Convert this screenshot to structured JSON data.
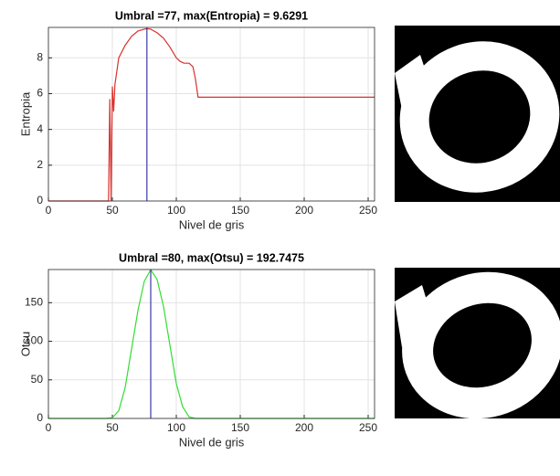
{
  "chart_data": [
    {
      "type": "line",
      "title": "Umbral =77, max(Entropia) = 9.6291",
      "x_label": "Nivel de gris",
      "y_label": "Entropia",
      "x": [
        0,
        10,
        20,
        30,
        40,
        47,
        48,
        49,
        50,
        51,
        52,
        55,
        60,
        65,
        70,
        75,
        77,
        80,
        85,
        90,
        95,
        100,
        103,
        106,
        110,
        113,
        115,
        117,
        120,
        150,
        200,
        255
      ],
      "values": [
        0,
        0,
        0,
        0,
        0,
        0,
        5.7,
        0,
        6.4,
        5.0,
        6.5,
        8.0,
        8.7,
        9.2,
        9.5,
        9.6,
        9.63,
        9.6,
        9.4,
        9.1,
        8.6,
        8.0,
        7.8,
        7.7,
        7.7,
        7.5,
        6.8,
        5.8,
        5.8,
        5.8,
        5.8,
        5.8
      ],
      "color": "#d9302c",
      "vline": 77,
      "vline_color": "#3a3aa8",
      "xlim": [
        0,
        255
      ],
      "ylim": [
        0,
        9.7
      ],
      "xticks": [
        0,
        50,
        100,
        150,
        200,
        250
      ],
      "yticks": [
        0,
        2,
        4,
        6,
        8
      ],
      "grid": true
    },
    {
      "type": "line",
      "title": "Umbral =80, max(Otsu) = 192.7475",
      "x_label": "Nivel de gris",
      "y_label": "Otsu",
      "x": [
        0,
        20,
        45,
        50,
        55,
        60,
        65,
        70,
        75,
        80,
        85,
        90,
        95,
        100,
        105,
        110,
        115,
        150,
        200,
        255
      ],
      "values": [
        0,
        0,
        0,
        1,
        10,
        40,
        90,
        140,
        178,
        192.7,
        180,
        145,
        95,
        45,
        15,
        2,
        0,
        0,
        0,
        0
      ],
      "color": "#33dd33",
      "vline": 80,
      "vline_color": "#3a3aa8",
      "xlim": [
        0,
        255
      ],
      "ylim": [
        0,
        193
      ],
      "xticks": [
        0,
        50,
        100,
        150,
        200,
        250
      ],
      "yticks": [
        0,
        50,
        100,
        150
      ],
      "grid": true
    }
  ]
}
